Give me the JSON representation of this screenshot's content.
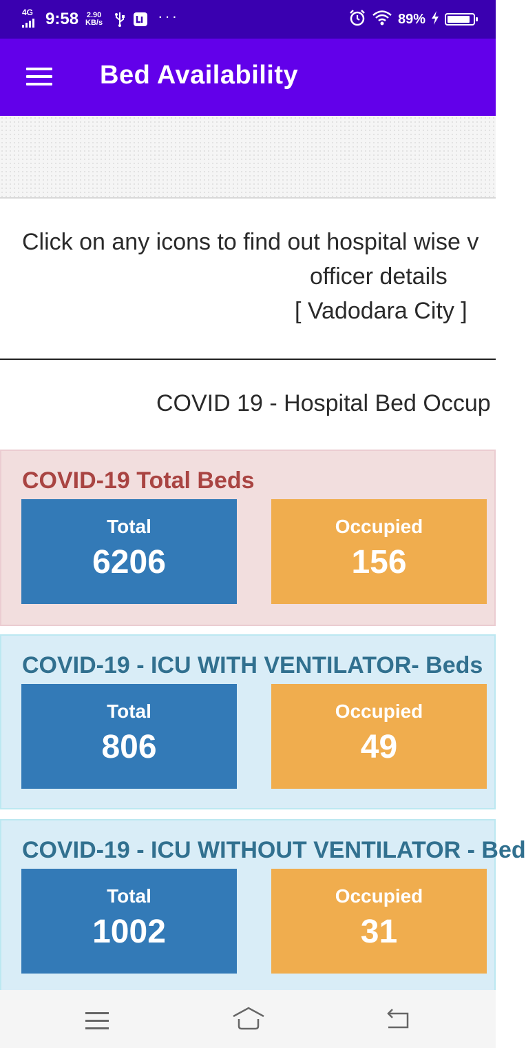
{
  "status_bar": {
    "network": "4G",
    "time": "9:58",
    "speed_value": "2.90",
    "speed_unit": "KB/s",
    "more": "···",
    "battery": "89%",
    "battery_level": 0.89,
    "icons": [
      "signal-icon",
      "usb-icon",
      "app-notification-icon",
      "alarm-icon",
      "wifi-icon",
      "charging-icon",
      "battery-icon"
    ]
  },
  "app_bar": {
    "title": "Bed Availability"
  },
  "info": {
    "line1": "Click on any icons to find out hospital wise v",
    "line2": "officer details",
    "line3": "[ Vadodara City ]"
  },
  "section_heading": "COVID 19 - Hospital Bed Occup",
  "panels": [
    {
      "title": "COVID-19 Total Beds",
      "total_label": "Total",
      "total_value": "6206",
      "occupied_label": "Occupied",
      "occupied_value": "156"
    },
    {
      "title": "COVID-19 - ICU WITH VENTILATOR- Beds",
      "total_label": "Total",
      "total_value": "806",
      "occupied_label": "Occupied",
      "occupied_value": "49"
    },
    {
      "title": "COVID-19 - ICU WITHOUT VENTILATOR - Bed",
      "total_label": "Total",
      "total_value": "1002",
      "occupied_label": "Occupied",
      "occupied_value": "31"
    }
  ],
  "colors": {
    "status_bar": "#3a00b0",
    "app_bar": "#6200ea",
    "total_box": "#337ab7",
    "occupied_box": "#f0ad4e",
    "pink_panel": "#f2dede",
    "blue_panel": "#d9edf7"
  },
  "bottom_nav": {
    "icons": [
      "menu-icon",
      "home-icon",
      "back-icon"
    ]
  }
}
